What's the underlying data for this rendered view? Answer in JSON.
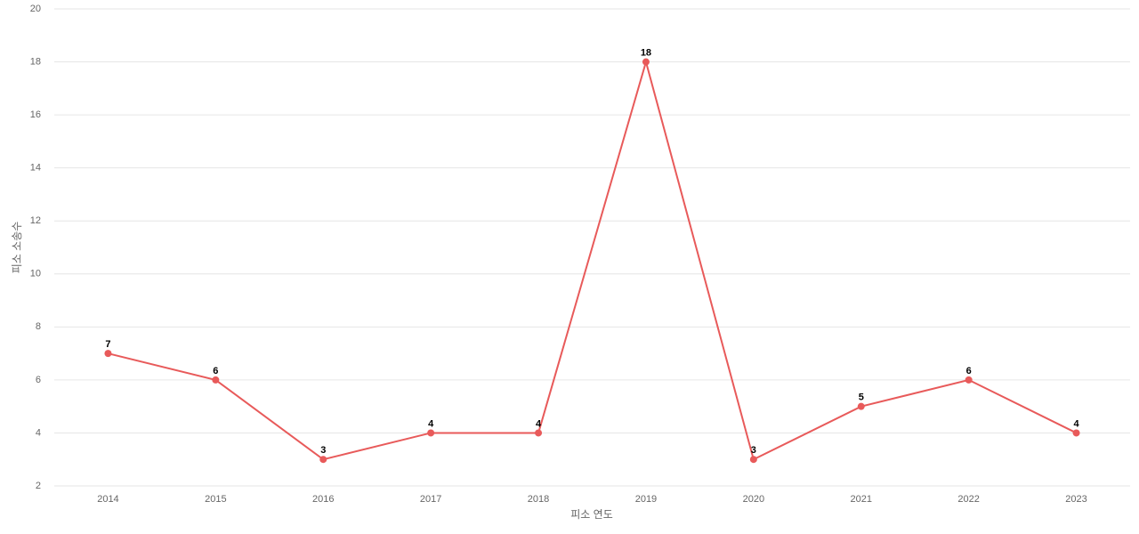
{
  "chart_data": {
    "type": "line",
    "x_label": "피소 연도",
    "y_label": "피소 소송수",
    "categories": [
      "2014",
      "2015",
      "2016",
      "2017",
      "2018",
      "2019",
      "2020",
      "2021",
      "2022",
      "2023"
    ],
    "values": [
      7,
      6,
      3,
      4,
      4,
      18,
      3,
      5,
      6,
      4
    ],
    "color": "#e85a5a",
    "ylim": [
      2,
      20
    ],
    "yticks": [
      2,
      4,
      6,
      8,
      10,
      12,
      14,
      16,
      18,
      20
    ],
    "grid": true
  }
}
